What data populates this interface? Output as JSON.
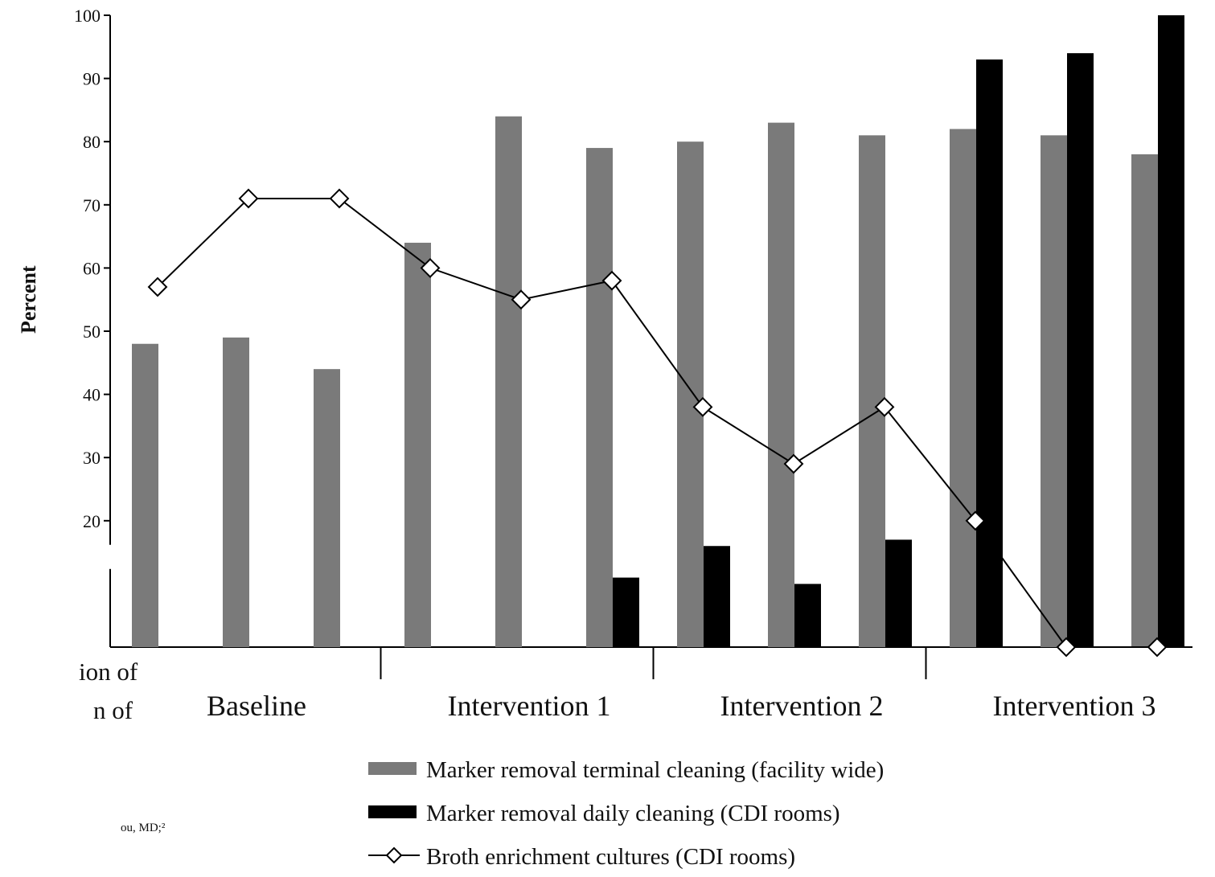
{
  "chart_data": {
    "type": "bar",
    "ylabel": "Percent",
    "ylim": [
      0,
      100
    ],
    "yticks": [
      20,
      30,
      40,
      50,
      60,
      70,
      80,
      90,
      100
    ],
    "grid": false,
    "groups": [
      "Baseline",
      "Intervention 1",
      "Intervention 2",
      "Intervention 3"
    ],
    "group_sizes": [
      3,
      3,
      3,
      3
    ],
    "series": [
      {
        "name": "Marker removal terminal cleaning (facility wide)",
        "kind": "bar",
        "color": "#7a7a7a",
        "values": [
          48,
          49,
          44,
          64,
          84,
          79,
          80,
          83,
          81,
          82,
          81,
          78
        ]
      },
      {
        "name": "Marker removal daily cleaning (CDI rooms)",
        "kind": "bar",
        "color": "#000000",
        "values": [
          null,
          null,
          null,
          null,
          null,
          11,
          16,
          10,
          17,
          93,
          94,
          100
        ]
      },
      {
        "name": "Broth enrichment cultures (CDI rooms)",
        "kind": "line",
        "color": "#000000",
        "marker": "open-diamond",
        "values": [
          57,
          71,
          71,
          60,
          55,
          58,
          38,
          29,
          38,
          20,
          0,
          0
        ]
      }
    ],
    "legend_position": "bottom-right"
  },
  "fragments": {
    "line1": "ion of",
    "line2": "n of",
    "line3": "ou, MD;²"
  }
}
